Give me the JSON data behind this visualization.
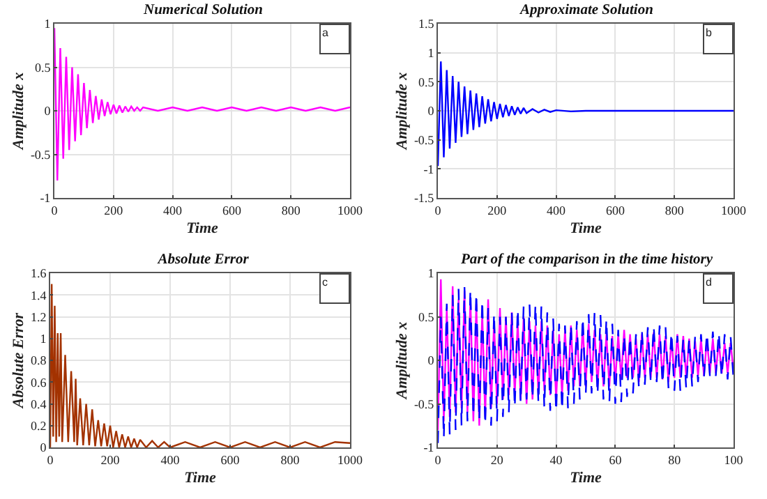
{
  "chart_data": [
    {
      "type": "line",
      "title": "Numerical Solution",
      "xlabel": "Time",
      "ylabel": "Amplitude x",
      "annotations": [
        "a"
      ],
      "grid": true,
      "xlim": [
        0,
        1000
      ],
      "xticks": [
        0,
        200,
        400,
        600,
        800,
        1000
      ],
      "ylim": [
        -1,
        1
      ],
      "yticks": [
        -1,
        -0.5,
        0,
        0.5,
        1
      ],
      "series": [
        {
          "color": "#ff00ff",
          "x": [
            0,
            10,
            20,
            30,
            40,
            50,
            60,
            70,
            80,
            90,
            100,
            110,
            120,
            130,
            140,
            150,
            160,
            170,
            180,
            190,
            200,
            210,
            220,
            230,
            240,
            250,
            260,
            270,
            280,
            290,
            300,
            350,
            400,
            450,
            500,
            550,
            600,
            650,
            700,
            750,
            800,
            850,
            900,
            950,
            1000
          ],
          "values": [
            0.95,
            -0.8,
            0.72,
            -0.55,
            0.62,
            -0.45,
            0.5,
            -0.35,
            0.42,
            -0.28,
            0.32,
            -0.2,
            0.24,
            -0.14,
            0.17,
            -0.1,
            0.13,
            -0.06,
            0.1,
            -0.04,
            0.07,
            -0.03,
            0.06,
            -0.02,
            0.05,
            -0.01,
            0.05,
            0,
            0.04,
            0,
            0.04,
            0,
            0.04,
            0,
            0.04,
            0,
            0.04,
            0,
            0.04,
            0,
            0.04,
            0,
            0.04,
            0,
            0.04
          ]
        }
      ]
    },
    {
      "type": "line",
      "title": "Approximate Solution",
      "xlabel": "Time",
      "ylabel": "Amplitude x",
      "annotations": [
        "b"
      ],
      "grid": true,
      "xlim": [
        0,
        1000
      ],
      "xticks": [
        0,
        200,
        400,
        600,
        800,
        1000
      ],
      "ylim": [
        -1.5,
        1.5
      ],
      "yticks": [
        -1.5,
        -1,
        -0.5,
        0,
        0.5,
        1,
        1.5
      ],
      "series": [
        {
          "color": "#0000ff",
          "x": [
            0,
            10,
            20,
            30,
            40,
            50,
            60,
            70,
            80,
            90,
            100,
            110,
            120,
            130,
            140,
            150,
            160,
            170,
            180,
            190,
            200,
            210,
            220,
            230,
            240,
            250,
            260,
            270,
            280,
            290,
            300,
            320,
            340,
            360,
            380,
            400,
            450,
            500,
            600,
            700,
            800,
            900,
            1000
          ],
          "values": [
            -0.95,
            0.85,
            -0.8,
            0.7,
            -0.65,
            0.6,
            -0.55,
            0.5,
            -0.45,
            0.42,
            -0.4,
            0.35,
            -0.33,
            0.3,
            -0.28,
            0.25,
            -0.22,
            0.2,
            -0.18,
            0.15,
            -0.14,
            0.12,
            -0.11,
            0.1,
            -0.09,
            0.08,
            -0.07,
            0.06,
            -0.05,
            0.05,
            -0.04,
            0.03,
            -0.03,
            0.02,
            -0.02,
            0.01,
            -0.01,
            0,
            0,
            0,
            0,
            0,
            0
          ]
        }
      ]
    },
    {
      "type": "line",
      "title": "Absolute Error",
      "xlabel": "Time",
      "ylabel": "Absolute Error",
      "annotations": [
        "c"
      ],
      "grid": true,
      "xlim": [
        0,
        1000
      ],
      "xticks": [
        0,
        200,
        400,
        600,
        800,
        1000
      ],
      "ylim": [
        0,
        1.6
      ],
      "yticks": [
        0,
        0.2,
        0.4,
        0.6,
        0.8,
        1,
        1.2,
        1.4,
        1.6
      ],
      "series": [
        {
          "color": "#a33200",
          "x": [
            0,
            5,
            10,
            15,
            20,
            25,
            30,
            35,
            40,
            50,
            60,
            70,
            80,
            85,
            90,
            100,
            110,
            120,
            130,
            140,
            150,
            160,
            170,
            180,
            190,
            200,
            210,
            220,
            230,
            240,
            250,
            260,
            270,
            280,
            290,
            300,
            320,
            340,
            360,
            380,
            400,
            450,
            500,
            550,
            600,
            650,
            700,
            750,
            800,
            850,
            900,
            950,
            1000
          ],
          "values": [
            0,
            1.5,
            0.1,
            1.3,
            0.05,
            1.05,
            0.1,
            1.05,
            0.05,
            0.85,
            0.05,
            0.7,
            0.05,
            0.63,
            0.02,
            0.45,
            0.02,
            0.4,
            0.02,
            0.35,
            0.01,
            0.25,
            0.01,
            0.22,
            0.01,
            0.2,
            0,
            0.15,
            0,
            0.12,
            0,
            0.1,
            0,
            0.08,
            0,
            0.07,
            0,
            0.06,
            0,
            0.05,
            0,
            0.05,
            0,
            0.05,
            0,
            0.05,
            0,
            0.05,
            0,
            0.05,
            0,
            0.05,
            0.04
          ]
        }
      ]
    },
    {
      "type": "line",
      "title": "Part of the comparison in the time history",
      "xlabel": "Time",
      "ylabel": "Amplitude x",
      "annotations": [
        "d"
      ],
      "grid": true,
      "xlim": [
        0,
        100
      ],
      "xticks": [
        0,
        20,
        40,
        60,
        80,
        100
      ],
      "ylim": [
        -1,
        1
      ],
      "yticks": [
        -1,
        -0.5,
        0,
        0.5,
        1
      ],
      "x": [
        0,
        1,
        2,
        3,
        4,
        5,
        6,
        7,
        8,
        9,
        10,
        11,
        12,
        13,
        14,
        15,
        16,
        17,
        18,
        19,
        20,
        21,
        22,
        23,
        24,
        25,
        26,
        27,
        28,
        29,
        30,
        31,
        32,
        33,
        34,
        35,
        36,
        37,
        38,
        39,
        40,
        41,
        42,
        43,
        44,
        45,
        46,
        47,
        48,
        49,
        50,
        51,
        52,
        53,
        54,
        55,
        56,
        57,
        58,
        59,
        60,
        61,
        62,
        63,
        64,
        65,
        66,
        67,
        68,
        69,
        70,
        71,
        72,
        73,
        74,
        75,
        76,
        77,
        78,
        79,
        80,
        81,
        82,
        83,
        84,
        85,
        86,
        87,
        88,
        89,
        90,
        91,
        92,
        93,
        94,
        95,
        96,
        97,
        98,
        99,
        100
      ],
      "series": [
        {
          "color": "#ff00ff",
          "line_style": "solid",
          "values": [
            -0.8,
            0.93,
            -0.7,
            0.6,
            -0.65,
            0.85,
            -0.6,
            0.7,
            -0.55,
            0.8,
            -0.6,
            0.72,
            -0.7,
            0.65,
            -0.75,
            0.55,
            -0.65,
            0.7,
            -0.55,
            0.45,
            -0.5,
            0.6,
            -0.45,
            0.5,
            -0.4,
            0.55,
            -0.4,
            0.45,
            -0.45,
            0.5,
            -0.5,
            0.45,
            -0.45,
            0.4,
            -0.4,
            0.45,
            -0.35,
            0.4,
            -0.4,
            0.35,
            -0.45,
            0.3,
            -0.4,
            0.35,
            -0.35,
            0.4,
            -0.3,
            0.35,
            -0.3,
            0.4,
            -0.3,
            0.42,
            -0.25,
            0.35,
            -0.3,
            0.3,
            -0.3,
            0.3,
            -0.3,
            0.28,
            -0.25,
            0.3,
            -0.22,
            0.35,
            -0.2,
            0.3,
            -0.2,
            0.25,
            -0.25,
            0.3,
            -0.2,
            0.3,
            -0.2,
            0.32,
            -0.2,
            0.3,
            -0.22,
            0.28,
            -0.25,
            0.25,
            -0.2,
            0.3,
            -0.2,
            0.28,
            -0.2,
            0.25,
            -0.2,
            0.22,
            -0.18,
            0.25,
            -0.18,
            0.25,
            -0.15,
            0.25,
            -0.15,
            0.22,
            -0.15,
            0.2,
            -0.15,
            0.2,
            -0.12
          ]
        },
        {
          "color": "#0000ff",
          "line_style": "dashed",
          "values": [
            -0.95,
            0.5,
            -0.9,
            0.65,
            -0.85,
            0.75,
            -0.8,
            0.82,
            -0.75,
            0.84,
            -0.7,
            0.82,
            -0.65,
            0.78,
            -0.7,
            0.7,
            -0.75,
            0.6,
            -0.75,
            0.55,
            -0.7,
            0.5,
            -0.65,
            0.5,
            -0.6,
            0.55,
            -0.55,
            0.6,
            -0.5,
            0.62,
            -0.45,
            0.64,
            -0.45,
            0.65,
            -0.5,
            0.62,
            -0.55,
            0.55,
            -0.58,
            0.48,
            -0.6,
            0.42,
            -0.58,
            0.4,
            -0.55,
            0.42,
            -0.5,
            0.45,
            -0.45,
            0.5,
            -0.4,
            0.53,
            -0.38,
            0.55,
            -0.4,
            0.52,
            -0.45,
            0.48,
            -0.48,
            0.42,
            -0.5,
            0.35,
            -0.48,
            0.3,
            -0.42,
            0.28,
            -0.38,
            0.3,
            -0.32,
            0.35,
            -0.28,
            0.38,
            -0.25,
            0.4,
            -0.25,
            0.4,
            -0.28,
            0.38,
            -0.32,
            0.33,
            -0.35,
            0.28,
            -0.35,
            0.25,
            -0.33,
            0.25,
            -0.3,
            0.27,
            -0.25,
            0.3,
            -0.2,
            0.32,
            -0.18,
            0.33,
            -0.18,
            0.33,
            -0.2,
            0.3,
            -0.22,
            0.28,
            -0.22
          ]
        }
      ]
    }
  ]
}
